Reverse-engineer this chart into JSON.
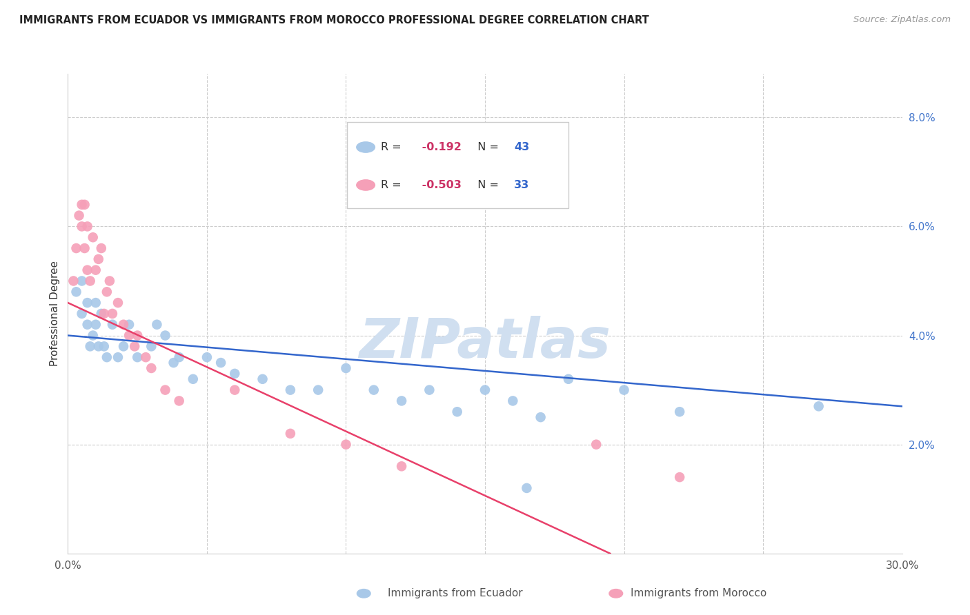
{
  "title": "IMMIGRANTS FROM ECUADOR VS IMMIGRANTS FROM MOROCCO PROFESSIONAL DEGREE CORRELATION CHART",
  "source": "Source: ZipAtlas.com",
  "ylabel": "Professional Degree",
  "xlim": [
    0.0,
    0.3
  ],
  "ylim": [
    0.0,
    0.088
  ],
  "ecuador_R": -0.192,
  "ecuador_N": 43,
  "morocco_R": -0.503,
  "morocco_N": 33,
  "ecuador_color": "#a8c8e8",
  "morocco_color": "#f5a0b8",
  "ecuador_line_color": "#3366cc",
  "morocco_line_color": "#e8406a",
  "watermark": "ZIPatlas",
  "watermark_color": "#d0dff0",
  "legend_text_color_r": "#cc3366",
  "legend_text_color_n": "#3366cc",
  "ecuador_scatter_x": [
    0.003,
    0.005,
    0.005,
    0.007,
    0.007,
    0.008,
    0.009,
    0.01,
    0.01,
    0.011,
    0.012,
    0.013,
    0.014,
    0.016,
    0.018,
    0.02,
    0.022,
    0.025,
    0.03,
    0.032,
    0.035,
    0.038,
    0.04,
    0.045,
    0.05,
    0.055,
    0.06,
    0.07,
    0.08,
    0.09,
    0.1,
    0.11,
    0.12,
    0.13,
    0.14,
    0.15,
    0.16,
    0.17,
    0.18,
    0.2,
    0.22,
    0.27,
    0.165
  ],
  "ecuador_scatter_y": [
    0.048,
    0.044,
    0.05,
    0.042,
    0.046,
    0.038,
    0.04,
    0.042,
    0.046,
    0.038,
    0.044,
    0.038,
    0.036,
    0.042,
    0.036,
    0.038,
    0.042,
    0.036,
    0.038,
    0.042,
    0.04,
    0.035,
    0.036,
    0.032,
    0.036,
    0.035,
    0.033,
    0.032,
    0.03,
    0.03,
    0.034,
    0.03,
    0.028,
    0.03,
    0.026,
    0.03,
    0.028,
    0.025,
    0.032,
    0.03,
    0.026,
    0.027,
    0.012
  ],
  "morocco_scatter_x": [
    0.002,
    0.003,
    0.004,
    0.005,
    0.005,
    0.006,
    0.006,
    0.007,
    0.007,
    0.008,
    0.009,
    0.01,
    0.011,
    0.012,
    0.013,
    0.014,
    0.015,
    0.016,
    0.018,
    0.02,
    0.022,
    0.024,
    0.025,
    0.028,
    0.03,
    0.035,
    0.04,
    0.06,
    0.08,
    0.1,
    0.12,
    0.19,
    0.22
  ],
  "morocco_scatter_y": [
    0.05,
    0.056,
    0.062,
    0.06,
    0.064,
    0.056,
    0.064,
    0.052,
    0.06,
    0.05,
    0.058,
    0.052,
    0.054,
    0.056,
    0.044,
    0.048,
    0.05,
    0.044,
    0.046,
    0.042,
    0.04,
    0.038,
    0.04,
    0.036,
    0.034,
    0.03,
    0.028,
    0.03,
    0.022,
    0.02,
    0.016,
    0.02,
    0.014
  ],
  "ecuador_line_x": [
    0.0,
    0.3
  ],
  "ecuador_line_y": [
    0.04,
    0.027
  ],
  "morocco_line_x": [
    0.0,
    0.195
  ],
  "morocco_line_y": [
    0.046,
    0.0
  ]
}
